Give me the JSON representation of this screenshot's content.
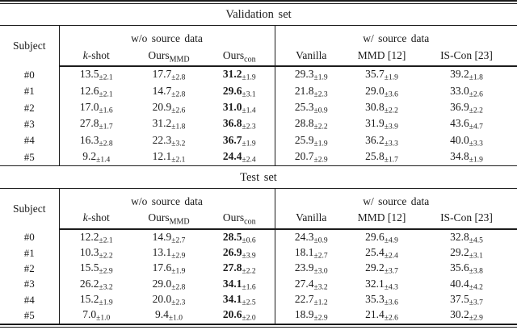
{
  "page": {
    "background": "#ffffff",
    "text_color": "#1b1b1b",
    "rule_color": "#1b1b1b"
  },
  "tables": [
    {
      "title": "Validation set",
      "subject_header": "Subject",
      "groups": [
        {
          "label": "w/o source data"
        },
        {
          "label": "w/ source data"
        }
      ],
      "columns": [
        {
          "key": "k-shot",
          "italic": "k",
          "text": "-shot",
          "sub": ""
        },
        {
          "key": "ours-mmd",
          "italic": "",
          "text": "Ours",
          "sub": "MMD"
        },
        {
          "key": "ours-con",
          "italic": "",
          "text": "Ours",
          "sub": "con"
        },
        {
          "key": "vanilla",
          "italic": "",
          "text": "Vanilla",
          "sub": ""
        },
        {
          "key": "mmd-12",
          "italic": "",
          "text": "MMD [12]",
          "sub": ""
        },
        {
          "key": "is-con-23",
          "italic": "",
          "text": "IS-Con [23]",
          "sub": ""
        }
      ],
      "bold_column": 2,
      "rows": [
        {
          "subject": "#0",
          "values": [
            {
              "v": "13.5",
              "pm": "2.1"
            },
            {
              "v": "17.7",
              "pm": "2.8"
            },
            {
              "v": "31.2",
              "pm": "1.9"
            },
            {
              "v": "29.3",
              "pm": "1.9"
            },
            {
              "v": "35.7",
              "pm": "1.9"
            },
            {
              "v": "39.2",
              "pm": "1.8"
            }
          ]
        },
        {
          "subject": "#1",
          "values": [
            {
              "v": "12.6",
              "pm": "2.1"
            },
            {
              "v": "14.7",
              "pm": "2.8"
            },
            {
              "v": "29.6",
              "pm": "3.1"
            },
            {
              "v": "21.8",
              "pm": "2.3"
            },
            {
              "v": "29.0",
              "pm": "3.6"
            },
            {
              "v": "33.0",
              "pm": "2.6"
            }
          ]
        },
        {
          "subject": "#2",
          "values": [
            {
              "v": "17.0",
              "pm": "1.6"
            },
            {
              "v": "20.9",
              "pm": "2.6"
            },
            {
              "v": "31.0",
              "pm": "1.4"
            },
            {
              "v": "25.3",
              "pm": "0.9"
            },
            {
              "v": "30.8",
              "pm": "2.2"
            },
            {
              "v": "36.9",
              "pm": "2.2"
            }
          ]
        },
        {
          "subject": "#3",
          "values": [
            {
              "v": "27.8",
              "pm": "1.7"
            },
            {
              "v": "31.2",
              "pm": "1.8"
            },
            {
              "v": "36.8",
              "pm": "2.3"
            },
            {
              "v": "28.8",
              "pm": "2.2"
            },
            {
              "v": "31.9",
              "pm": "3.9"
            },
            {
              "v": "43.6",
              "pm": "4.7"
            }
          ]
        },
        {
          "subject": "#4",
          "values": [
            {
              "v": "16.3",
              "pm": "2.8"
            },
            {
              "v": "22.3",
              "pm": "3.2"
            },
            {
              "v": "36.7",
              "pm": "1.9"
            },
            {
              "v": "25.9",
              "pm": "1.9"
            },
            {
              "v": "36.2",
              "pm": "3.3"
            },
            {
              "v": "40.0",
              "pm": "3.3"
            }
          ]
        },
        {
          "subject": "#5",
          "values": [
            {
              "v": "9.2",
              "pm": "1.4"
            },
            {
              "v": "12.1",
              "pm": "2.1"
            },
            {
              "v": "24.4",
              "pm": "2.4"
            },
            {
              "v": "20.7",
              "pm": "2.9"
            },
            {
              "v": "25.8",
              "pm": "1.7"
            },
            {
              "v": "34.8",
              "pm": "1.9"
            }
          ]
        }
      ]
    },
    {
      "title": "Test set",
      "subject_header": "Subject",
      "groups": [
        {
          "label": "w/o source data"
        },
        {
          "label": "w/ source data"
        }
      ],
      "columns": [
        {
          "key": "k-shot",
          "italic": "k",
          "text": "-shot",
          "sub": ""
        },
        {
          "key": "ours-mmd",
          "italic": "",
          "text": "Ours",
          "sub": "MMD"
        },
        {
          "key": "ours-con",
          "italic": "",
          "text": "Ours",
          "sub": "con"
        },
        {
          "key": "vanilla",
          "italic": "",
          "text": "Vanilla",
          "sub": ""
        },
        {
          "key": "mmd-12",
          "italic": "",
          "text": "MMD [12]",
          "sub": ""
        },
        {
          "key": "is-con-23",
          "italic": "",
          "text": "IS-Con [23]",
          "sub": ""
        }
      ],
      "bold_column": 2,
      "rows": [
        {
          "subject": "#0",
          "values": [
            {
              "v": "12.2",
              "pm": "2.1"
            },
            {
              "v": "14.9",
              "pm": "2.7"
            },
            {
              "v": "28.5",
              "pm": "0.6"
            },
            {
              "v": "24.3",
              "pm": "0.9"
            },
            {
              "v": "29.6",
              "pm": "4.9"
            },
            {
              "v": "32.8",
              "pm": "4.5"
            }
          ]
        },
        {
          "subject": "#1",
          "values": [
            {
              "v": "10.3",
              "pm": "2.2"
            },
            {
              "v": "13.1",
              "pm": "2.9"
            },
            {
              "v": "26.9",
              "pm": "3.9"
            },
            {
              "v": "18.1",
              "pm": "2.7"
            },
            {
              "v": "25.4",
              "pm": "2.4"
            },
            {
              "v": "29.2",
              "pm": "3.1"
            }
          ]
        },
        {
          "subject": "#2",
          "values": [
            {
              "v": "15.5",
              "pm": "2.9"
            },
            {
              "v": "17.6",
              "pm": "1.9"
            },
            {
              "v": "27.8",
              "pm": "2.2"
            },
            {
              "v": "23.9",
              "pm": "3.0"
            },
            {
              "v": "29.2",
              "pm": "3.7"
            },
            {
              "v": "35.6",
              "pm": "3.8"
            }
          ]
        },
        {
          "subject": "#3",
          "values": [
            {
              "v": "26.2",
              "pm": "3.2"
            },
            {
              "v": "29.0",
              "pm": "2.8"
            },
            {
              "v": "34.1",
              "pm": "1.6"
            },
            {
              "v": "27.4",
              "pm": "3.2"
            },
            {
              "v": "32.1",
              "pm": "4.3"
            },
            {
              "v": "40.4",
              "pm": "4.2"
            }
          ]
        },
        {
          "subject": "#4",
          "values": [
            {
              "v": "15.2",
              "pm": "1.9"
            },
            {
              "v": "20.0",
              "pm": "2.3"
            },
            {
              "v": "34.1",
              "pm": "2.5"
            },
            {
              "v": "22.7",
              "pm": "1.2"
            },
            {
              "v": "35.3",
              "pm": "3.6"
            },
            {
              "v": "37.5",
              "pm": "3.7"
            }
          ]
        },
        {
          "subject": "#5",
          "values": [
            {
              "v": "7.0",
              "pm": "1.0"
            },
            {
              "v": "9.4",
              "pm": "1.0"
            },
            {
              "v": "20.6",
              "pm": "2.0"
            },
            {
              "v": "18.9",
              "pm": "2.9"
            },
            {
              "v": "21.4",
              "pm": "2.6"
            },
            {
              "v": "30.2",
              "pm": "2.9"
            }
          ]
        }
      ]
    }
  ]
}
